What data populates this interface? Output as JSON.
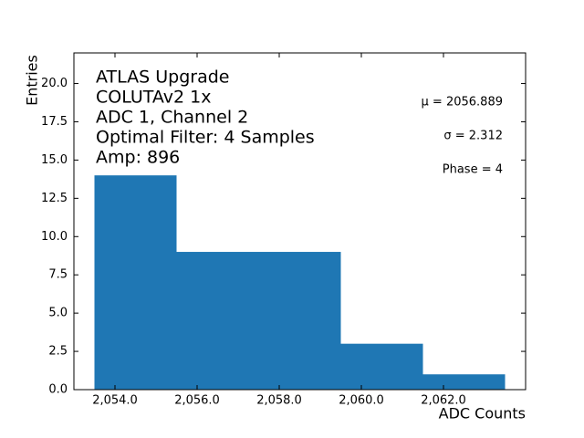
{
  "chart_data": {
    "type": "histogram",
    "bins": [
      2053.5,
      2055.5,
      2057.5,
      2059.5,
      2061.5,
      2063.5
    ],
    "counts": [
      14,
      9,
      9,
      3,
      1
    ],
    "color": "#1f77b4",
    "xlabel": "ADC Counts",
    "ylabel": "Entries",
    "xlim": [
      2053,
      2064
    ],
    "ylim": [
      0,
      22
    ],
    "xticks": [
      {
        "value": 2054,
        "label": "2,054.0"
      },
      {
        "value": 2056,
        "label": "2,056.0"
      },
      {
        "value": 2058,
        "label": "2,058.0"
      },
      {
        "value": 2060,
        "label": "2,060.0"
      },
      {
        "value": 2062,
        "label": "2,062.0"
      }
    ],
    "yticks": [
      {
        "value": 0,
        "label": "0.0"
      },
      {
        "value": 2.5,
        "label": "2.5"
      },
      {
        "value": 5,
        "label": "5.0"
      },
      {
        "value": 7.5,
        "label": "7.5"
      },
      {
        "value": 10,
        "label": "10.0"
      },
      {
        "value": 12.5,
        "label": "12.5"
      },
      {
        "value": 15,
        "label": "15.0"
      },
      {
        "value": 17.5,
        "label": "17.5"
      },
      {
        "value": 20,
        "label": "20.0"
      }
    ],
    "annotations": [
      "ATLAS Upgrade",
      "COLUTAv2 1x",
      "ADC 1, Channel 2",
      "Optimal Filter: 4 Samples",
      "Amp: 896"
    ],
    "stats": [
      "μ = 2056.889",
      "σ = 2.312",
      "Phase = 4"
    ]
  }
}
